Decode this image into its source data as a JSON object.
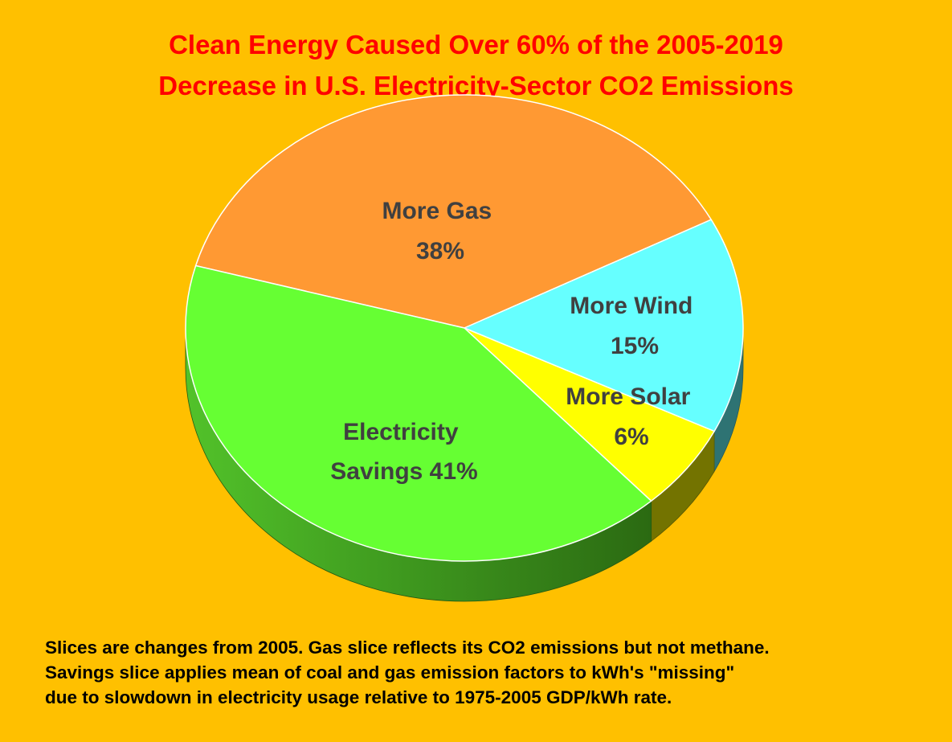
{
  "chart_data": {
    "type": "pie",
    "title_lines": [
      "Clean Energy Caused Over 60% of the 2005-2019",
      "Decrease in U.S. Electricity-Sector CO2 Emissions"
    ],
    "slices": [
      {
        "label_lines": [
          "More Gas",
          "38%"
        ],
        "value": 38,
        "color": "#FF9933"
      },
      {
        "label_lines": [
          "More Wind",
          "15%"
        ],
        "value": 15,
        "color": "#66FFFF"
      },
      {
        "label_lines": [
          "More Solar",
          "6%"
        ],
        "value": 6,
        "color": "#FFFF00"
      },
      {
        "label_lines": [
          "Electricity",
          "Savings 41%"
        ],
        "value": 41,
        "color": "#66FF33"
      }
    ],
    "legend": "none",
    "style": "3d-pie"
  },
  "footnote_lines": [
    "Slices are changes from 2005. Gas slice reflects its CO2 emissions but not methane.",
    "Savings slice applies mean of coal and gas emission factors to kWh's \"missing\"",
    "due to slowdown in electricity usage relative to 1975-2005 GDP/kWh rate."
  ],
  "colors": {
    "background": "#FFC000",
    "title": "#FF0000",
    "label_text": "#404040",
    "footnote": "#000000"
  }
}
